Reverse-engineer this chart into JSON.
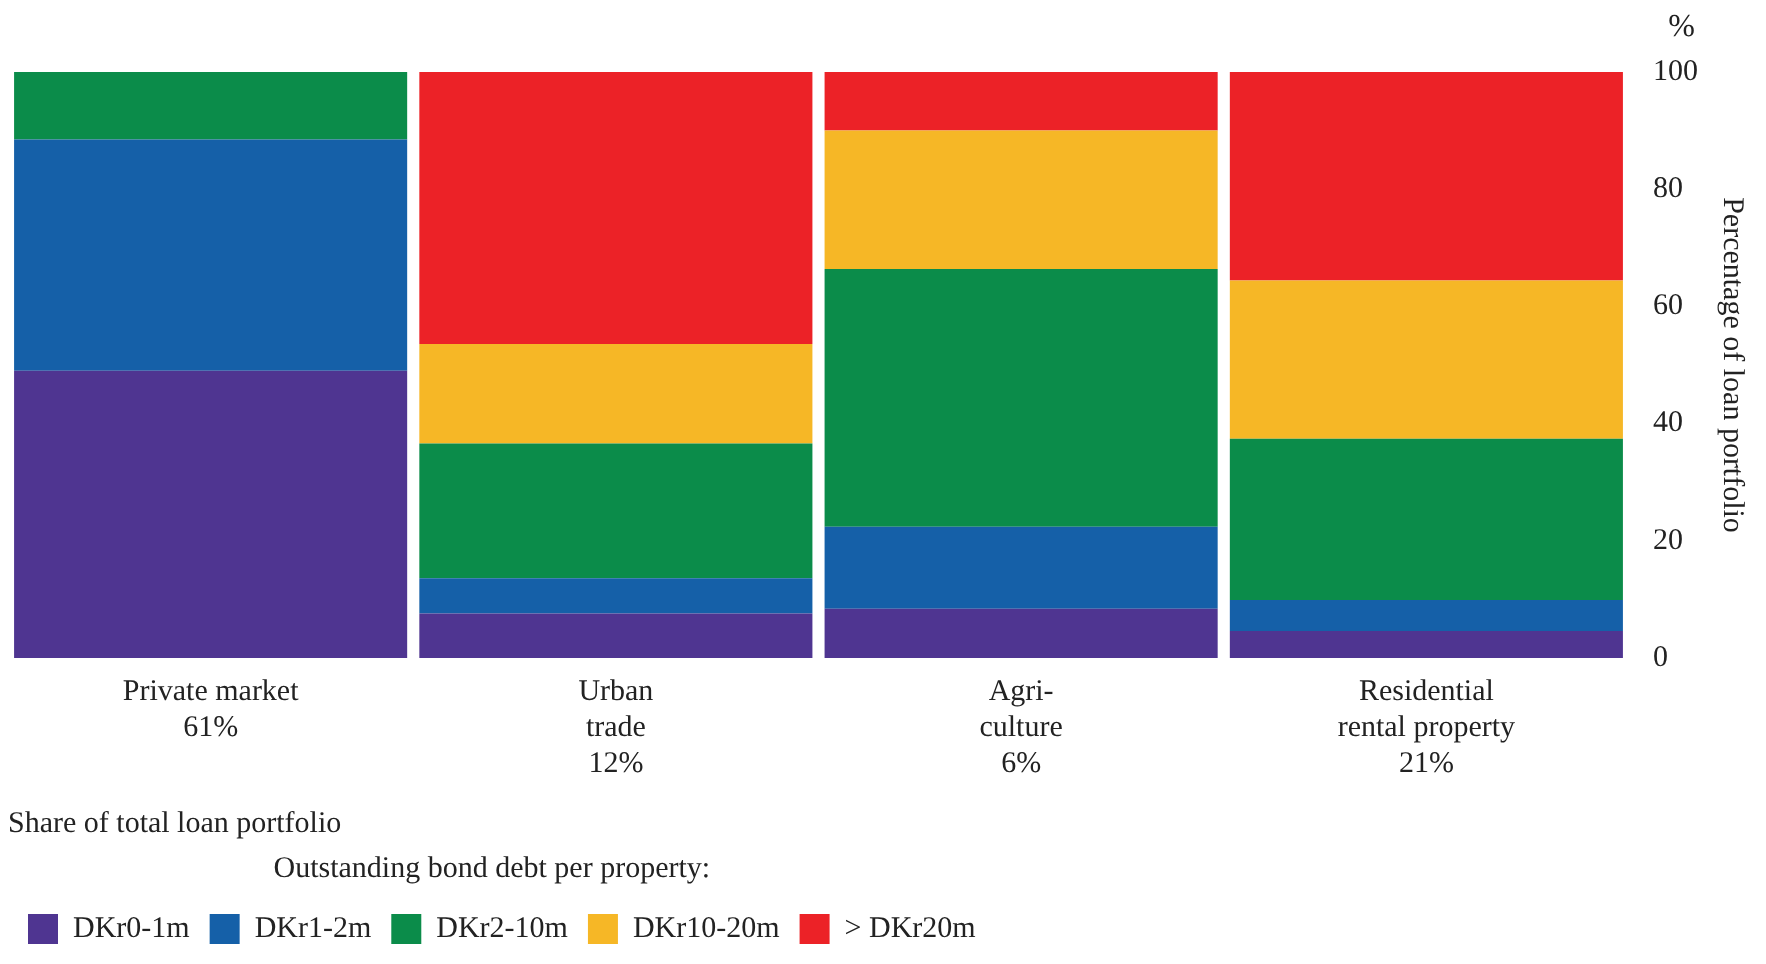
{
  "chart_data": {
    "type": "bar",
    "stacked": true,
    "categories": [
      "Private market\n61%",
      "Urban\ntrade\n12%",
      "Agri-\nculture\n6%",
      "Residential\nrental property\n21%"
    ],
    "series": [
      {
        "name": "DKr0-1m",
        "color": "#4f3591",
        "values": [
          49,
          7.6,
          8.4,
          4.6
        ]
      },
      {
        "name": "DKr1-2m",
        "color": "#1560a8",
        "values": [
          39.5,
          6,
          14,
          5.3
        ]
      },
      {
        "name": "DKr2-10m",
        "color": "#0b8c4a",
        "values": [
          11.5,
          23,
          44,
          27.5
        ]
      },
      {
        "name": "DKr10-20m",
        "color": "#f6b726",
        "values": [
          0,
          17,
          23.6,
          27
        ]
      },
      {
        "name": "> DKr20m",
        "color": "#ec2227",
        "values": [
          0,
          46.4,
          10,
          35.6
        ]
      }
    ],
    "ylim": [
      0,
      100
    ],
    "yticks": [
      0,
      20,
      40,
      60,
      80,
      100
    ],
    "ylabel": "Percentage of loan portfolio",
    "xlabel": "Share of total loan portfolio",
    "legend_title": "Outstanding bond debt per property:",
    "legend": "bottom",
    "annotations": [
      "%"
    ],
    "grid": false
  }
}
